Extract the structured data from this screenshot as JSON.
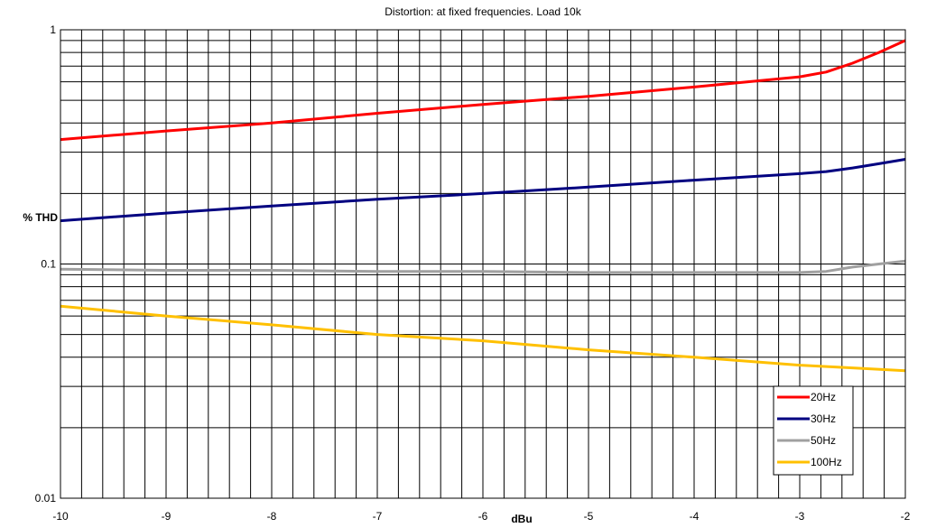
{
  "chart_data": {
    "type": "line",
    "title": "Distortion: at fixed frequencies.  Load 10k",
    "xlabel": "dBu",
    "ylabel": "% THD",
    "xlim": [
      -10,
      -2
    ],
    "ylim": [
      0.01,
      1
    ],
    "yscale": "log",
    "grid": true,
    "legend_position": "bottom-right",
    "x_tick_labels": [
      "-10",
      "-9",
      "-8",
      "-7",
      "-6",
      "-5",
      "-4",
      "-3",
      "-2"
    ],
    "y_tick_labels": [
      "0.01",
      "0.1",
      "1"
    ],
    "series": [
      {
        "name": "20Hz",
        "color": "#ff0000",
        "points": [
          [
            -10,
            0.34
          ],
          [
            -9,
            0.37
          ],
          [
            -8,
            0.4
          ],
          [
            -7,
            0.44
          ],
          [
            -6,
            0.48
          ],
          [
            -5,
            0.52
          ],
          [
            -4,
            0.57
          ],
          [
            -3,
            0.63
          ],
          [
            -2.75,
            0.66
          ],
          [
            -2.5,
            0.72
          ],
          [
            -2.25,
            0.8
          ],
          [
            -2,
            0.9
          ]
        ]
      },
      {
        "name": "30Hz",
        "color": "#000080",
        "points": [
          [
            -10,
            0.153
          ],
          [
            -9,
            0.165
          ],
          [
            -8,
            0.177
          ],
          [
            -7,
            0.189
          ],
          [
            -6,
            0.2
          ],
          [
            -5,
            0.213
          ],
          [
            -4,
            0.228
          ],
          [
            -3,
            0.243
          ],
          [
            -2.75,
            0.248
          ],
          [
            -2.5,
            0.257
          ],
          [
            -2.25,
            0.268
          ],
          [
            -2,
            0.28
          ]
        ]
      },
      {
        "name": "50Hz",
        "color": "#a0a0a0",
        "points": [
          [
            -10,
            0.095
          ],
          [
            -9,
            0.094
          ],
          [
            -8,
            0.094
          ],
          [
            -7,
            0.093
          ],
          [
            -6,
            0.093
          ],
          [
            -5,
            0.092
          ],
          [
            -4,
            0.092
          ],
          [
            -3,
            0.092
          ],
          [
            -2.75,
            0.093
          ],
          [
            -2.5,
            0.097
          ],
          [
            -2.25,
            0.1
          ],
          [
            -2,
            0.103
          ]
        ]
      },
      {
        "name": "100Hz",
        "color": "#ffc000",
        "points": [
          [
            -10,
            0.066
          ],
          [
            -9,
            0.06
          ],
          [
            -8,
            0.055
          ],
          [
            -7,
            0.05
          ],
          [
            -6,
            0.047
          ],
          [
            -5,
            0.043
          ],
          [
            -4,
            0.04
          ],
          [
            -3,
            0.037
          ],
          [
            -2.5,
            0.036
          ],
          [
            -2,
            0.035
          ]
        ]
      }
    ]
  }
}
